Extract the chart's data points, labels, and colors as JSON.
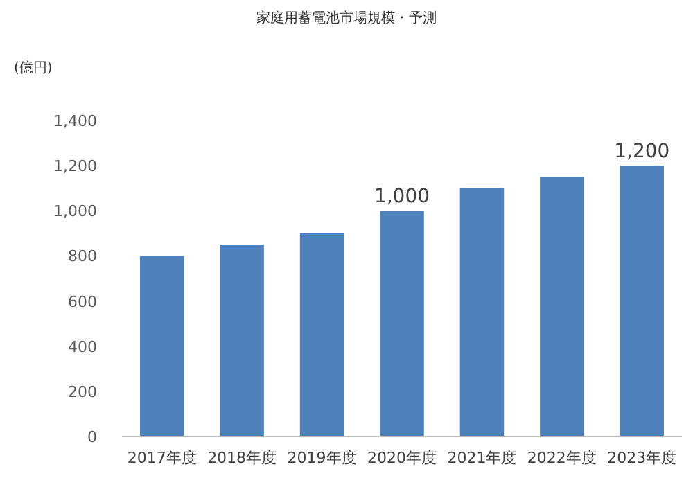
{
  "chart_data": {
    "type": "bar",
    "title": "家庭用蓄電池市場規模・予測",
    "ylabel": "(億円)",
    "categories": [
      "2017年度",
      "2018年度",
      "2019年度",
      "2020年度",
      "2021年度",
      "2022年度",
      "2023年度"
    ],
    "values": [
      800,
      850,
      900,
      1000,
      1100,
      1150,
      1200
    ],
    "value_labels": [
      null,
      null,
      null,
      "1,000",
      null,
      null,
      "1,200"
    ],
    "color": "#4f81bd",
    "ylim": [
      0,
      1400
    ],
    "yticks": [
      {
        "value": 0,
        "label": "0"
      },
      {
        "value": 200,
        "label": "200"
      },
      {
        "value": 400,
        "label": "400"
      },
      {
        "value": 600,
        "label": "600"
      },
      {
        "value": 800,
        "label": "800"
      },
      {
        "value": 1000,
        "label": "1,000"
      },
      {
        "value": 1200,
        "label": "1,200"
      },
      {
        "value": 1400,
        "label": "1,400"
      }
    ],
    "grid": false
  }
}
